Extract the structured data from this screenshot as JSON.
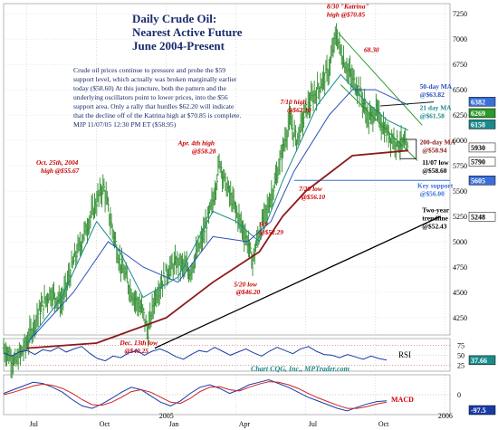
{
  "chart_data": {
    "type": "bar",
    "subtype": "OHLC price chart with indicator panels",
    "title_lines": [
      "Daily Crude Oil:",
      "Nearest Active Future",
      "June 2004-Present"
    ],
    "commentary": [
      "Crude oil prices continue to pressure and probe the $59",
      "support level, which actually was broken marginally earlier",
      "today ($58.60)  At this juncture, both the pattern and the",
      "underlying oscillators point to lower prices, into the $56",
      "support area.  Only a rally that hurdles $62.20 will indicate",
      "that the decline off of the Katrina high at $70.85 is complete.",
      "MJP 11/07/05  12:30 PM ET  ($58.95)"
    ],
    "x_axis_labels": [
      "Jul",
      "Oct",
      "2005",
      "Jan",
      "Apr",
      "Jul",
      "Oct",
      "2006"
    ],
    "x_axis_months_from_jun2004": [
      1,
      4,
      7,
      7,
      10,
      13,
      16,
      19
    ],
    "x_range_months": [
      0,
      19.2
    ],
    "y_ticks": [
      4250,
      4500,
      4750,
      5000,
      5250,
      5500,
      5750,
      6000,
      6250,
      6500,
      6750,
      7000,
      7250
    ],
    "y_range": [
      4080,
      7350
    ],
    "price_label_boxes": [
      {
        "value": "6382",
        "y": 6382,
        "color": "#3a6fd8"
      },
      {
        "value": "6269",
        "y": 6269,
        "color": "#2a9a2a"
      },
      {
        "value": "6158",
        "y": 6158,
        "color": "#1a8a8a"
      },
      {
        "value": "5930",
        "y": 5930,
        "color": "#ffffff"
      },
      {
        "value": "5790",
        "y": 5790,
        "color": "#ffffff"
      },
      {
        "value": "5605",
        "y": 5605,
        "color": "#3a6fd8"
      },
      {
        "value": "5248",
        "y": 5248,
        "color": "#ffffff"
      }
    ],
    "price_path": [
      [
        0.0,
        3950
      ],
      [
        0.5,
        3800
      ],
      [
        1.0,
        4000
      ],
      [
        1.5,
        4300
      ],
      [
        2.0,
        4500
      ],
      [
        2.5,
        4400
      ],
      [
        3.0,
        4800
      ],
      [
        3.5,
        5100
      ],
      [
        4.0,
        5400
      ],
      [
        4.3,
        5550
      ],
      [
        4.6,
        5200
      ],
      [
        5.0,
        4800
      ],
      [
        5.5,
        4500
      ],
      [
        6.0,
        4300
      ],
      [
        6.2,
        4100
      ],
      [
        6.5,
        4450
      ],
      [
        7.0,
        4700
      ],
      [
        7.5,
        4800
      ],
      [
        8.0,
        4700
      ],
      [
        8.5,
        5000
      ],
      [
        9.0,
        5400
      ],
      [
        9.3,
        5800
      ],
      [
        9.5,
        5600
      ],
      [
        10.0,
        5300
      ],
      [
        10.5,
        5000
      ],
      [
        10.7,
        4800
      ],
      [
        11.0,
        5100
      ],
      [
        11.3,
        5300
      ],
      [
        11.7,
        5600
      ],
      [
        12.0,
        5900
      ],
      [
        12.3,
        6200
      ],
      [
        12.6,
        6000
      ],
      [
        13.0,
        6300
      ],
      [
        13.5,
        6500
      ],
      [
        14.0,
        6700
      ],
      [
        14.3,
        7050
      ],
      [
        14.6,
        6800
      ],
      [
        15.0,
        6600
      ],
      [
        15.3,
        6500
      ],
      [
        15.7,
        6200
      ],
      [
        16.0,
        6300
      ],
      [
        16.4,
        6100
      ],
      [
        16.8,
        6000
      ],
      [
        17.2,
        5960
      ],
      [
        17.4,
        5900
      ]
    ],
    "lines": [
      {
        "name": "200-day MA",
        "color": "#8b1a1a",
        "points": [
          [
            1.0,
            3950
          ],
          [
            4.0,
            4000
          ],
          [
            7.0,
            4250
          ],
          [
            9.0,
            4600
          ],
          [
            11.0,
            4900
          ],
          [
            12.0,
            5250
          ],
          [
            13.0,
            5500
          ],
          [
            15.0,
            5850
          ],
          [
            17.4,
            5900
          ]
        ]
      },
      {
        "name": "50-day MA",
        "color": "#2a4fb8",
        "points": [
          [
            1.0,
            4000
          ],
          [
            3.0,
            4500
          ],
          [
            4.5,
            5000
          ],
          [
            6.0,
            4750
          ],
          [
            7.5,
            4600
          ],
          [
            9.0,
            5050
          ],
          [
            10.5,
            5000
          ],
          [
            11.5,
            5200
          ],
          [
            12.5,
            5700
          ],
          [
            14.0,
            6250
          ],
          [
            15.0,
            6500
          ],
          [
            16.0,
            6500
          ],
          [
            17.4,
            6350
          ]
        ]
      },
      {
        "name": "21-day MA",
        "color": "#1a8a8a",
        "points": [
          [
            1.0,
            4000
          ],
          [
            2.5,
            4450
          ],
          [
            4.0,
            5200
          ],
          [
            5.0,
            4900
          ],
          [
            6.0,
            4450
          ],
          [
            7.5,
            4650
          ],
          [
            9.0,
            5300
          ],
          [
            10.0,
            5200
          ],
          [
            11.0,
            5000
          ],
          [
            12.0,
            5600
          ],
          [
            13.5,
            6350
          ],
          [
            14.5,
            6650
          ],
          [
            15.5,
            6400
          ],
          [
            16.5,
            6200
          ],
          [
            17.4,
            6100
          ]
        ]
      },
      {
        "name": "Two-year trendline",
        "color": "#000000",
        "points": [
          [
            6.5,
            3950
          ],
          [
            18.8,
            5250
          ]
        ]
      },
      {
        "name": "channel upper",
        "color": "#2a9a2a",
        "points": [
          [
            14.4,
            7060
          ],
          [
            18.0,
            6150
          ]
        ]
      },
      {
        "name": "channel lower",
        "color": "#2a9a2a",
        "points": [
          [
            14.5,
            6550
          ],
          [
            17.8,
            5800
          ]
        ]
      },
      {
        "name": "key support",
        "color": "#3a6fd8",
        "points": [
          [
            12.5,
            5605
          ],
          [
            19.2,
            5605
          ]
        ]
      },
      {
        "name": "resistance guide",
        "color": "#1a1a1a",
        "points": [
          [
            16.2,
            6340
          ],
          [
            18.5,
            6380
          ]
        ]
      }
    ],
    "annotations": [
      {
        "text": "8/30 \"Katrina\"",
        "x": 13.9,
        "y": 7300,
        "color": "#cc0000"
      },
      {
        "text": "high @$70.85",
        "x": 13.9,
        "y": 7220,
        "color": "#cc0000"
      },
      {
        "text": "68.30",
        "x": 15.5,
        "y": 6870,
        "color": "#cc0000"
      },
      {
        "text": "50-day MA",
        "x": 17.9,
        "y": 6510,
        "color": "#2a4fb8"
      },
      {
        "text": "@$63.82",
        "x": 17.9,
        "y": 6430,
        "color": "#2a4fb8"
      },
      {
        "text": "21 day MA",
        "x": 17.9,
        "y": 6300,
        "color": "#1a8a8a"
      },
      {
        "text": "@$61.58",
        "x": 17.9,
        "y": 6220,
        "color": "#1a8a8a"
      },
      {
        "text": "7/10 high",
        "x": 11.9,
        "y": 6360,
        "color": "#cc0000"
      },
      {
        "text": "@$62.10",
        "x": 12.2,
        "y": 6280,
        "color": "#cc0000"
      },
      {
        "text": "Apr. 4th high",
        "x": 7.5,
        "y": 5950,
        "color": "#cc0000"
      },
      {
        "text": "@$58.28",
        "x": 8.1,
        "y": 5870,
        "color": "#cc0000"
      },
      {
        "text": "Oct. 25th, 2004",
        "x": 1.4,
        "y": 5760,
        "color": "#cc0000"
      },
      {
        "text": "high @$55.67",
        "x": 1.6,
        "y": 5680,
        "color": "#cc0000"
      },
      {
        "text": "200-day MA",
        "x": 17.9,
        "y": 5960,
        "color": "#8b1a1a"
      },
      {
        "text": "@$58.94",
        "x": 18.0,
        "y": 5880,
        "color": "#8b1a1a"
      },
      {
        "text": "11/07 low",
        "x": 18.0,
        "y": 5760,
        "color": "#000000"
      },
      {
        "text": "@$58.60",
        "x": 18.0,
        "y": 5680,
        "color": "#000000"
      },
      {
        "text": "7/20 low",
        "x": 12.7,
        "y": 5500,
        "color": "#cc0000"
      },
      {
        "text": "@$56.10",
        "x": 12.8,
        "y": 5420,
        "color": "#cc0000"
      },
      {
        "text": "Key support",
        "x": 17.8,
        "y": 5530,
        "color": "#3a6fd8"
      },
      {
        "text": "@$56.00",
        "x": 17.9,
        "y": 5450,
        "color": "#3a6fd8"
      },
      {
        "text": "6/9",
        "x": 11.0,
        "y": 5150,
        "color": "#cc0000"
      },
      {
        "text": "@$52.29",
        "x": 11.0,
        "y": 5070,
        "color": "#cc0000"
      },
      {
        "text": "Two-year",
        "x": 18.0,
        "y": 5290,
        "color": "#000000"
      },
      {
        "text": "trendline",
        "x": 18.0,
        "y": 5210,
        "color": "#000000"
      },
      {
        "text": "@$52.43",
        "x": 18.0,
        "y": 5130,
        "color": "#000000"
      },
      {
        "text": "5/20 low",
        "x": 9.9,
        "y": 4560,
        "color": "#cc0000"
      },
      {
        "text": "@$46.20",
        "x": 10.0,
        "y": 4480,
        "color": "#cc0000"
      },
      {
        "text": "Dec. 13th low",
        "x": 5.0,
        "y": 3980,
        "color": "#cc0000"
      },
      {
        "text": "@$40.25",
        "x": 5.2,
        "y": 3900,
        "color": "#cc0000"
      }
    ],
    "rsi": {
      "label": "RSI",
      "ticks": [
        25,
        50,
        75
      ],
      "range": [
        10,
        92
      ],
      "current": "37.66",
      "values": [
        55,
        48,
        58,
        62,
        52,
        64,
        60,
        70,
        58,
        66,
        72,
        55,
        42,
        36,
        48,
        44,
        56,
        62,
        50,
        60,
        66,
        58,
        47,
        40,
        52,
        62,
        58,
        70,
        60,
        50,
        58,
        66,
        56,
        48,
        60,
        70,
        62,
        54,
        66,
        72,
        60,
        52,
        50,
        44,
        52,
        46,
        40,
        48,
        42,
        38
      ],
      "source": "Chart CQG, Inc., MPTrader.com"
    },
    "macd": {
      "label": "MACD",
      "zero_label": "0",
      "current": "-97.5",
      "range": [
        -320,
        320
      ],
      "macd_values": [
        20,
        80,
        140,
        200,
        180,
        120,
        40,
        -80,
        -180,
        -220,
        -150,
        -60,
        40,
        120,
        80,
        -20,
        -120,
        -180,
        -100,
        20,
        120,
        160,
        100,
        20,
        80,
        160,
        200,
        240,
        180,
        120,
        40,
        -40,
        -100,
        -160,
        -220,
        -260,
        -200,
        -150,
        -110,
        -97
      ],
      "signal_values": [
        0,
        40,
        90,
        140,
        170,
        150,
        100,
        20,
        -80,
        -160,
        -170,
        -120,
        -40,
        50,
        80,
        40,
        -40,
        -120,
        -140,
        -60,
        50,
        120,
        130,
        80,
        60,
        120,
        170,
        210,
        200,
        160,
        100,
        20,
        -50,
        -110,
        -170,
        -220,
        -220,
        -190,
        -150,
        -120
      ]
    }
  }
}
